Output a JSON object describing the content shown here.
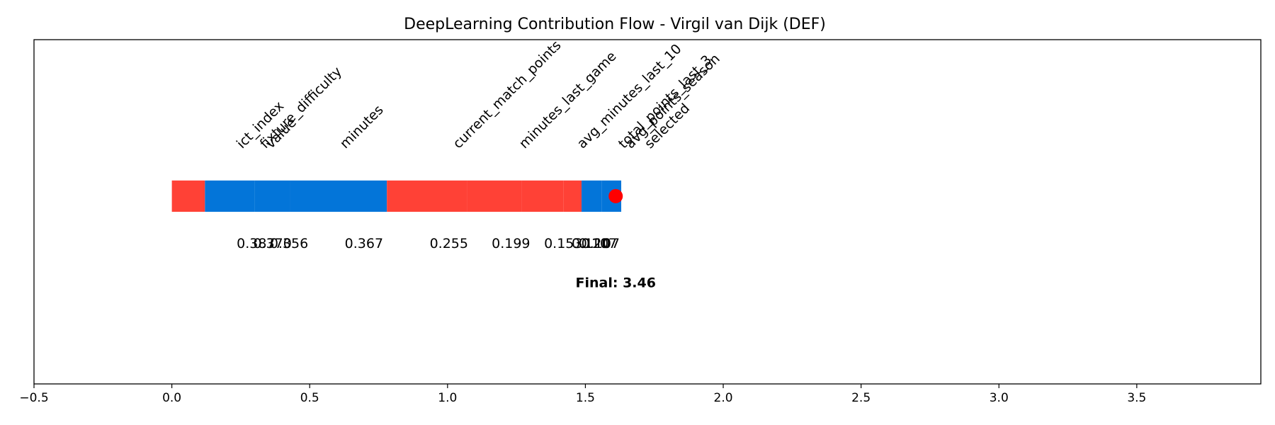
{
  "chart_data": {
    "type": "bar",
    "orientation": "horizontal-waterfall",
    "title": "DeepLearning Contribution Flow - Virgil van Dijk (DEF)",
    "xlim": [
      -0.5,
      3.95
    ],
    "ylim": [
      -1.2,
      1.0
    ],
    "xticks": [
      -0.5,
      0.0,
      0.5,
      1.0,
      1.5,
      2.0,
      2.5,
      3.0,
      3.5
    ],
    "xtick_labels": [
      "−0.5",
      "0.0",
      "0.5",
      "1.0",
      "1.5",
      "2.0",
      "2.5",
      "3.0",
      "3.5"
    ],
    "grid": false,
    "positive_color": "#0375d9",
    "negative_color": "#ff4136",
    "marker_color": "#ff0000",
    "segments": [
      {
        "feature": "ict_index",
        "value_label": "0.387",
        "start": 0.0,
        "end": 0.12,
        "color": "#ff4136"
      },
      {
        "feature": "fixture_difficulty",
        "value_label": "0.370",
        "start": 0.12,
        "end": 0.3,
        "color": "#0375d9"
      },
      {
        "feature": "value",
        "value_label": "0.356",
        "start": 0.3,
        "end": 0.43,
        "color": "#0375d9"
      },
      {
        "feature": "minutes",
        "value_label": "0.367",
        "start": 0.43,
        "end": 0.78,
        "color": "#0375d9"
      },
      {
        "feature": "current_match_points",
        "value_label": "0.255",
        "start": 0.78,
        "end": 1.07,
        "color": "#ff4136"
      },
      {
        "feature": "minutes_last_game",
        "value_label": "0.199",
        "start": 1.07,
        "end": 1.27,
        "color": "#ff4136"
      },
      {
        "feature": "avg_minutes_last_10",
        "value_label": "0.153",
        "start": 1.27,
        "end": 1.42,
        "color": "#ff4136"
      },
      {
        "feature": "total_points_last_3",
        "value_label": "0.120",
        "start": 1.42,
        "end": 1.486,
        "color": "#ff4136"
      },
      {
        "feature": "avg_points_season",
        "value_label": "0.107",
        "start": 1.486,
        "end": 1.56,
        "color": "#0375d9"
      },
      {
        "feature": "selected",
        "value_label": "0.107",
        "start": 1.56,
        "end": 1.63,
        "color": "#0375d9"
      }
    ],
    "feature_label_x": [
      0.255,
      0.34,
      0.36,
      0.63,
      1.04,
      1.28,
      1.49,
      1.64,
      1.665,
      1.735
    ],
    "value_label_x": [
      0.305,
      0.365,
      0.425,
      0.697,
      1.005,
      1.23,
      1.42,
      1.52,
      1.545,
      1.555
    ],
    "final": {
      "label": "Final: 3.46",
      "x": 1.61,
      "label_x": 1.61
    }
  }
}
